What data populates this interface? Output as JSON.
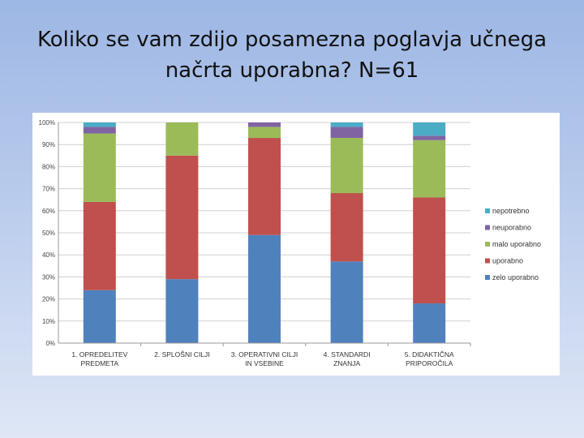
{
  "slide": {
    "title": "Koliko se vam zdijo posamezna poglavja učnega načrta uporabna? N=61"
  },
  "chart_data": {
    "type": "bar",
    "stacked": true,
    "percent": true,
    "title": "",
    "xlabel": "",
    "ylabel": "",
    "ylim": [
      0,
      100
    ],
    "yticks": [
      "0%",
      "10%",
      "20%",
      "30%",
      "40%",
      "50%",
      "60%",
      "70%",
      "80%",
      "90%",
      "100%"
    ],
    "grid": true,
    "legend_position": "right",
    "categories": [
      [
        "1. OPREDELITEV",
        "PREDMETA"
      ],
      [
        "2. SPLOŠNI CILJI"
      ],
      [
        "3. OPERATIVNI CILJI",
        "IN VSEBINE"
      ],
      [
        "4. STANDARDI",
        "ZNANJA"
      ],
      [
        "5. DIDAKTIČNA",
        "PRIPOROČILA"
      ]
    ],
    "series": [
      {
        "name": "zelo uporabno",
        "color": "#4f81bd",
        "values": [
          24,
          29,
          49,
          37,
          18
        ]
      },
      {
        "name": "uporabno",
        "color": "#c0504d",
        "values": [
          40,
          56,
          44,
          31,
          48
        ]
      },
      {
        "name": "malo uporabno",
        "color": "#9bbb59",
        "values": [
          31,
          15,
          5,
          25,
          26
        ]
      },
      {
        "name": "neuporabno",
        "color": "#8064a2",
        "values": [
          3,
          0,
          2,
          5,
          2
        ]
      },
      {
        "name": "nepotrebno",
        "color": "#4bacc6",
        "values": [
          2,
          0,
          0,
          2,
          6
        ]
      }
    ]
  }
}
